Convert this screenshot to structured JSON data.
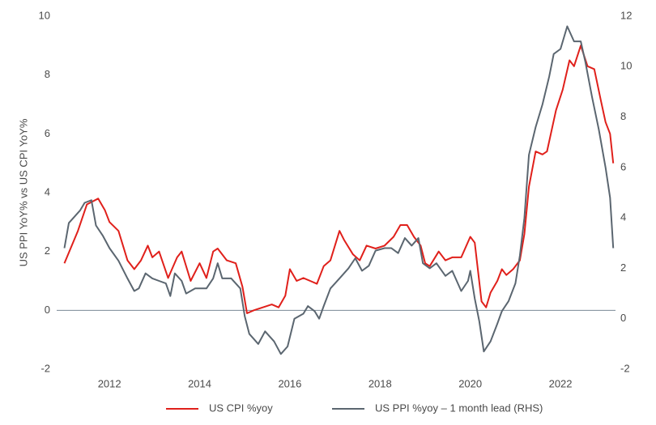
{
  "chart_data": {
    "type": "line",
    "y_label": "US PPI YoY% vs US CPI YoY%",
    "xlim": [
      2010.83,
      2023.22
    ],
    "xticks": [
      2012,
      2014,
      2016,
      2018,
      2020,
      2022
    ],
    "ylim": [
      -2,
      10
    ],
    "yticks": [
      -2,
      0,
      2,
      4,
      6,
      8,
      10
    ],
    "y2lim": [
      -2,
      12
    ],
    "y2ticks": [
      -2,
      0,
      2,
      4,
      6,
      8,
      10,
      12
    ],
    "zero_line": true,
    "legend": "bottom",
    "series": [
      {
        "name": "US CPI %yoy",
        "color": "#e0201b",
        "x": [
          2011.0,
          2011.3,
          2011.5,
          2011.75,
          2011.9,
          2012.0,
          2012.2,
          2012.4,
          2012.55,
          2012.7,
          2012.85,
          2012.95,
          2013.1,
          2013.3,
          2013.5,
          2013.6,
          2013.8,
          2014.0,
          2014.15,
          2014.3,
          2014.4,
          2014.6,
          2014.8,
          2014.95,
          2015.05,
          2015.2,
          2015.4,
          2015.6,
          2015.75,
          2015.9,
          2016.0,
          2016.15,
          2016.3,
          2016.45,
          2016.6,
          2016.75,
          2016.9,
          2017.1,
          2017.2,
          2017.4,
          2017.55,
          2017.7,
          2017.9,
          2018.1,
          2018.3,
          2018.45,
          2018.6,
          2018.75,
          2018.9,
          2019.0,
          2019.1,
          2019.3,
          2019.45,
          2019.6,
          2019.8,
          2020.0,
          2020.1,
          2020.25,
          2020.35,
          2020.45,
          2020.6,
          2020.7,
          2020.8,
          2020.95,
          2021.1,
          2021.2,
          2021.3,
          2021.45,
          2021.6,
          2021.7,
          2021.9,
          2022.05,
          2022.2,
          2022.3,
          2022.45,
          2022.6,
          2022.75,
          2022.9,
          2023.0,
          2023.1,
          2023.17
        ],
        "values": [
          1.6,
          2.7,
          3.6,
          3.8,
          3.4,
          3.0,
          2.7,
          1.7,
          1.4,
          1.7,
          2.2,
          1.8,
          2.0,
          1.1,
          1.8,
          2.0,
          1.0,
          1.6,
          1.1,
          2.0,
          2.1,
          1.7,
          1.6,
          0.8,
          -0.1,
          0.0,
          0.1,
          0.2,
          0.1,
          0.5,
          1.4,
          1.0,
          1.1,
          1.0,
          0.9,
          1.5,
          1.7,
          2.7,
          2.4,
          1.9,
          1.7,
          2.2,
          2.1,
          2.2,
          2.5,
          2.9,
          2.9,
          2.5,
          2.2,
          1.6,
          1.5,
          2.0,
          1.7,
          1.8,
          1.8,
          2.5,
          2.3,
          0.3,
          0.1,
          0.6,
          1.0,
          1.4,
          1.2,
          1.4,
          1.7,
          2.6,
          4.2,
          5.4,
          5.3,
          5.4,
          6.8,
          7.5,
          8.5,
          8.3,
          9.0,
          8.3,
          8.2,
          7.1,
          6.4,
          6.0,
          5.0
        ]
      },
      {
        "name": "US PPI %yoy – 1 month lead (RHS)",
        "color": "#5b6670",
        "axis": "y2",
        "x": [
          2011.0,
          2011.1,
          2011.35,
          2011.45,
          2011.6,
          2011.7,
          2011.85,
          2012.0,
          2012.2,
          2012.4,
          2012.55,
          2012.65,
          2012.8,
          2012.95,
          2013.1,
          2013.25,
          2013.35,
          2013.45,
          2013.6,
          2013.7,
          2013.9,
          2014.15,
          2014.3,
          2014.4,
          2014.5,
          2014.7,
          2014.9,
          2015.0,
          2015.1,
          2015.3,
          2015.45,
          2015.65,
          2015.8,
          2015.95,
          2016.1,
          2016.3,
          2016.4,
          2016.55,
          2016.65,
          2016.75,
          2016.9,
          2017.1,
          2017.3,
          2017.45,
          2017.6,
          2017.75,
          2017.9,
          2018.1,
          2018.25,
          2018.4,
          2018.55,
          2018.7,
          2018.85,
          2018.95,
          2019.1,
          2019.25,
          2019.45,
          2019.6,
          2019.8,
          2019.95,
          2020.0,
          2020.1,
          2020.2,
          2020.3,
          2020.45,
          2020.6,
          2020.7,
          2020.85,
          2021.0,
          2021.1,
          2021.2,
          2021.3,
          2021.45,
          2021.6,
          2021.75,
          2021.85,
          2022.0,
          2022.15,
          2022.3,
          2022.45,
          2022.55,
          2022.7,
          2022.85,
          2023.0,
          2023.1,
          2023.17
        ],
        "values": [
          2.8,
          3.8,
          4.3,
          4.6,
          4.7,
          3.7,
          3.3,
          2.8,
          2.3,
          1.6,
          1.1,
          1.2,
          1.8,
          1.6,
          1.5,
          1.4,
          0.9,
          1.8,
          1.5,
          1.0,
          1.2,
          1.2,
          1.6,
          2.2,
          1.6,
          1.6,
          1.2,
          0.1,
          -0.6,
          -1.0,
          -0.5,
          -0.9,
          -1.4,
          -1.1,
          0.0,
          0.2,
          0.5,
          0.3,
          0.0,
          0.5,
          1.2,
          1.6,
          2.0,
          2.4,
          1.9,
          2.1,
          2.7,
          2.8,
          2.8,
          2.6,
          3.2,
          2.9,
          3.2,
          2.2,
          2.0,
          2.2,
          1.7,
          1.9,
          1.1,
          1.5,
          1.9,
          0.8,
          -0.1,
          -1.3,
          -0.9,
          -0.2,
          0.3,
          0.7,
          1.4,
          2.5,
          4.0,
          6.5,
          7.6,
          8.5,
          9.6,
          10.5,
          10.7,
          11.6,
          11.0,
          11.0,
          10.2,
          8.8,
          7.5,
          6.0,
          4.8,
          2.8
        ]
      }
    ]
  }
}
